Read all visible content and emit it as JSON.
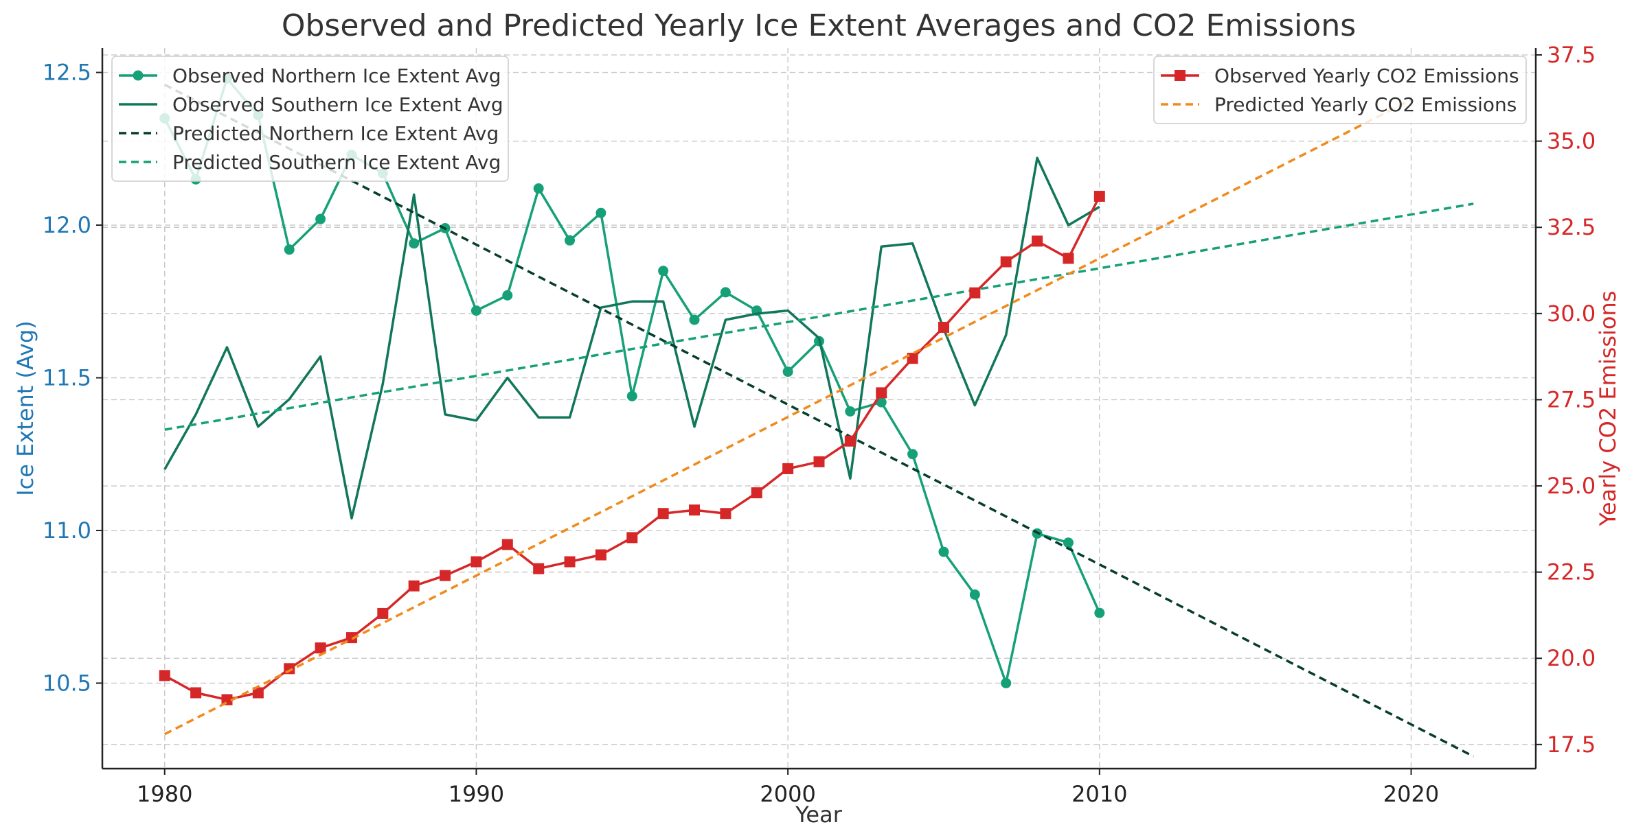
{
  "colors": {
    "left_axis": "#1f77b4",
    "right_axis": "#d62728",
    "observed_north": "#16a078",
    "observed_south": "#11775a",
    "predicted_north": "#073d2c",
    "predicted_south": "#16a078",
    "observed_co2": "#d62728",
    "predicted_co2": "#f08a1c"
  },
  "chart_data": {
    "type": "line",
    "title": "Observed and Predicted Yearly Ice Extent Averages and CO2 Emissions",
    "xlabel": "Year",
    "ylabel": "Ice Extent (Avg)",
    "ylabel_right": "Yearly CO2 Emissions",
    "xlim": [
      1978,
      2024
    ],
    "ylim": [
      10.22,
      12.58
    ],
    "ylim_right": [
      16.8,
      37.7
    ],
    "x_ticks": [
      1980,
      1990,
      2000,
      2010,
      2020
    ],
    "y_ticks": [
      10.5,
      11.0,
      11.5,
      12.0,
      12.5
    ],
    "y_ticks_right": [
      17.5,
      20.0,
      22.5,
      25.0,
      27.5,
      30.0,
      32.5,
      35.0,
      37.5
    ],
    "grid": true,
    "legend_left_placement": "top-left",
    "legend_right_placement": "top-right",
    "series": [
      {
        "name": "Observed Northern Ice Extent Avg",
        "axis": "left",
        "style": "solid-marker-circle",
        "x": [
          1980,
          1981,
          1982,
          1983,
          1984,
          1985,
          1986,
          1987,
          1988,
          1989,
          1990,
          1991,
          1992,
          1993,
          1994,
          1995,
          1996,
          1997,
          1998,
          1999,
          2000,
          2001,
          2002,
          2003,
          2004,
          2005,
          2006,
          2007,
          2008,
          2009,
          2010
        ],
        "values": [
          12.35,
          12.15,
          12.48,
          12.36,
          11.92,
          12.02,
          12.23,
          12.17,
          11.94,
          11.99,
          11.72,
          11.77,
          12.12,
          11.95,
          12.04,
          11.44,
          11.85,
          11.69,
          11.78,
          11.72,
          11.52,
          11.62,
          11.39,
          11.42,
          11.25,
          10.93,
          10.79,
          10.5,
          10.99,
          10.96,
          10.73
        ]
      },
      {
        "name": "Observed Southern Ice Extent Avg",
        "axis": "left",
        "style": "solid",
        "x": [
          1980,
          1981,
          1982,
          1983,
          1984,
          1985,
          1986,
          1987,
          1988,
          1989,
          1990,
          1991,
          1992,
          1993,
          1994,
          1995,
          1996,
          1997,
          1998,
          1999,
          2000,
          2001,
          2002,
          2003,
          2004,
          2005,
          2006,
          2007,
          2008,
          2009,
          2010
        ],
        "values": [
          11.2,
          11.38,
          11.6,
          11.34,
          11.43,
          11.57,
          11.04,
          11.48,
          12.1,
          11.38,
          11.36,
          11.5,
          11.37,
          11.37,
          11.73,
          11.75,
          11.75,
          11.34,
          11.69,
          11.71,
          11.72,
          11.63,
          11.17,
          11.93,
          11.94,
          11.66,
          11.41,
          11.64,
          12.22,
          12.0,
          12.06
        ]
      },
      {
        "name": "Predicted Northern Ice Extent Avg",
        "axis": "left",
        "style": "dashed",
        "x": [
          1980,
          2022
        ],
        "values": [
          12.46,
          10.26
        ]
      },
      {
        "name": "Predicted Southern Ice Extent Avg",
        "axis": "left",
        "style": "dashed",
        "x": [
          1980,
          2022
        ],
        "values": [
          11.33,
          12.07
        ]
      },
      {
        "name": "Observed Yearly CO2 Emissions",
        "axis": "right",
        "style": "solid-marker-square",
        "x": [
          1980,
          1981,
          1982,
          1983,
          1984,
          1985,
          1986,
          1987,
          1988,
          1989,
          1990,
          1991,
          1992,
          1993,
          1994,
          1995,
          1996,
          1997,
          1998,
          1999,
          2000,
          2001,
          2002,
          2003,
          2004,
          2005,
          2006,
          2007,
          2008,
          2009,
          2010
        ],
        "values": [
          19.5,
          19.0,
          18.8,
          19.0,
          19.7,
          20.3,
          20.6,
          21.3,
          22.1,
          22.4,
          22.8,
          23.3,
          22.6,
          22.8,
          23.0,
          23.5,
          24.2,
          24.3,
          24.2,
          24.8,
          25.5,
          25.7,
          26.3,
          27.7,
          28.7,
          29.6,
          30.6,
          31.5,
          32.1,
          31.6,
          33.4
        ]
      },
      {
        "name": "Predicted Yearly CO2 Emissions",
        "axis": "right",
        "style": "dashed",
        "x": [
          1980,
          2020
        ],
        "values": [
          17.8,
          36.2
        ]
      }
    ]
  }
}
